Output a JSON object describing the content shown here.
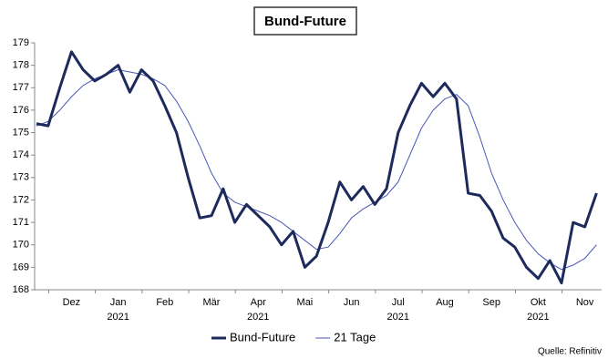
{
  "chart_data": {
    "type": "line",
    "title": "Bund-Future",
    "source": "Quelle: Refinitiv",
    "categories": [
      null,
      null,
      null,
      "Dez",
      null,
      null,
      null,
      "Jan",
      null,
      null,
      null,
      "Feb",
      null,
      null,
      null,
      "Mär",
      null,
      null,
      null,
      "Apr",
      null,
      null,
      null,
      "Mai",
      null,
      null,
      null,
      "Jun",
      null,
      null,
      null,
      "Jul",
      null,
      null,
      null,
      "Aug",
      null,
      null,
      null,
      "Sep",
      null,
      null,
      null,
      "Okt",
      null,
      null,
      null,
      "Nov",
      null
    ],
    "year_labels": [
      null,
      null,
      null,
      null,
      null,
      null,
      null,
      "2021",
      null,
      null,
      null,
      null,
      null,
      null,
      null,
      null,
      null,
      null,
      null,
      "2021",
      null,
      null,
      null,
      null,
      null,
      null,
      null,
      null,
      null,
      null,
      null,
      "2021",
      null,
      null,
      null,
      null,
      null,
      null,
      null,
      null,
      null,
      null,
      null,
      "2021",
      null,
      null,
      null,
      null,
      null
    ],
    "series": [
      {
        "name": "Bund-Future",
        "color": "#1c2a5c",
        "width": 3,
        "values": [
          175.4,
          175.3,
          177.0,
          178.6,
          177.8,
          177.3,
          177.6,
          178.0,
          176.8,
          177.8,
          177.3,
          176.2,
          175.0,
          173.0,
          171.2,
          171.3,
          172.5,
          171.0,
          171.8,
          171.3,
          170.8,
          170.0,
          170.6,
          169.0,
          169.5,
          171.0,
          172.8,
          172.0,
          172.6,
          171.8,
          172.5,
          175.0,
          176.2,
          177.2,
          176.6,
          177.2,
          176.5,
          172.3,
          172.2,
          171.5,
          170.3,
          169.9,
          169.0,
          168.5,
          169.3,
          168.3,
          171.0,
          170.8,
          172.3
        ]
      },
      {
        "name": "21 Tage",
        "color": "#4a56b8",
        "width": 1,
        "values": [
          175.3,
          175.5,
          176.0,
          176.6,
          177.1,
          177.4,
          177.6,
          177.8,
          177.7,
          177.6,
          177.4,
          177.1,
          176.4,
          175.5,
          174.4,
          173.2,
          172.3,
          171.9,
          171.7,
          171.5,
          171.3,
          171.0,
          170.6,
          170.2,
          169.8,
          169.9,
          170.5,
          171.2,
          171.6,
          171.9,
          172.2,
          172.8,
          174.0,
          175.2,
          176.0,
          176.5,
          176.7,
          176.2,
          174.8,
          173.2,
          172.0,
          171.0,
          170.2,
          169.6,
          169.2,
          168.9,
          169.1,
          169.4,
          170.0
        ]
      }
    ],
    "ylim": [
      168,
      179
    ],
    "yticks": [
      168,
      169,
      170,
      171,
      172,
      173,
      174,
      175,
      176,
      177,
      178,
      179
    ],
    "legend": "bottom"
  }
}
